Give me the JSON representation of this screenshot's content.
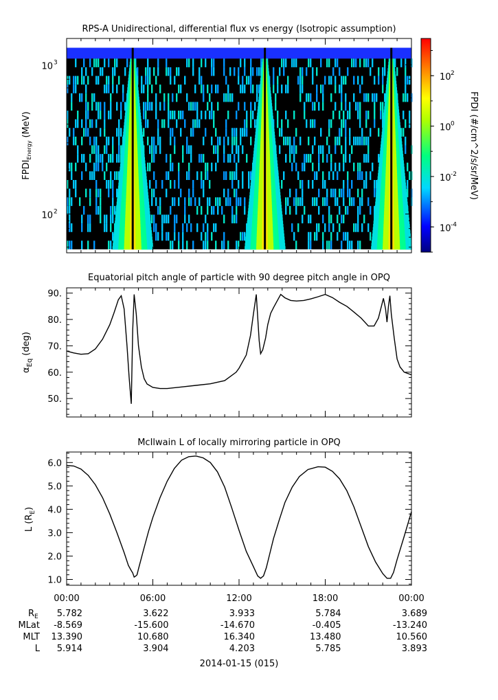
{
  "chart_data": [
    {
      "type": "heatmap",
      "title": "RPS-A Unidirectional, differential flux vs energy (Isotropic assumption)",
      "ylabel": "FPDI",
      "ylabel_sub": "Energy",
      "ylabel_unit": "(MeV)",
      "yscale": "log",
      "ylim": [
        55,
        1500
      ],
      "yticks": [
        {
          "value": 100,
          "label": "10",
          "exp": "2"
        },
        {
          "value": 1000,
          "label": "10",
          "exp": "3"
        }
      ],
      "data_range": [
        58,
        1300
      ],
      "fill_color": "#000000",
      "top_band_color": "#1a30ff",
      "bright_bands_hours": [
        4.6,
        13.8,
        22.6
      ],
      "colorbar": {
        "label": "FPDI (#/cm^2/s/sr/MeV)",
        "scale": "log",
        "range": [
          1e-05,
          3000
        ],
        "ticks": [
          {
            "value": 0.0001,
            "label": "10",
            "exp": "-4"
          },
          {
            "value": 0.01,
            "label": "10",
            "exp": "-2"
          },
          {
            "value": 1,
            "label": "10",
            "exp": "0"
          },
          {
            "value": 100,
            "label": "10",
            "exp": "2"
          }
        ]
      }
    },
    {
      "type": "line",
      "title": "Equatorial pitch angle of particle with 90 degree pitch angle in OPQ",
      "ylabel": "α",
      "ylabel_sub": "Eq",
      "ylabel_unit": "(deg)",
      "ylim": [
        43,
        92
      ],
      "yticks": [
        50,
        60,
        70,
        80,
        90
      ],
      "x_hours": [
        0,
        0.5,
        1,
        1.5,
        2,
        2.5,
        3,
        3.3,
        3.6,
        3.8,
        4,
        4.2,
        4.35,
        4.5,
        4.6,
        4.7,
        4.85,
        5,
        5.2,
        5.4,
        5.6,
        6,
        6.5,
        7,
        8,
        9,
        10,
        11,
        11.8,
        12,
        12.5,
        12.8,
        13,
        13.2,
        13.4,
        13.5,
        13.65,
        13.85,
        14,
        14.2,
        14.4,
        14.6,
        14.9,
        15.2,
        15.6,
        16,
        16.5,
        17,
        17.5,
        18,
        18.5,
        19,
        19.5,
        20,
        20.5,
        21,
        21.4,
        21.7,
        22.05,
        22.2,
        22.3,
        22.4,
        22.5,
        22.6,
        22.8,
        23,
        23.2,
        23.5,
        24
      ],
      "values": [
        68,
        67.3,
        66.8,
        67,
        68.8,
        72.5,
        78,
        82.5,
        87.5,
        89,
        84,
        70,
        58,
        48,
        76,
        89.5,
        82,
        70,
        62,
        57.5,
        55.5,
        54.2,
        53.8,
        53.8,
        54.4,
        55,
        55.6,
        56.8,
        60,
        61.5,
        66.5,
        74,
        82,
        89.5,
        72,
        67,
        68.5,
        73,
        78,
        82.3,
        84.5,
        86.5,
        89.5,
        88.2,
        87.2,
        87,
        87.2,
        87.8,
        88.6,
        89.5,
        88.3,
        86.5,
        85,
        82.8,
        80.5,
        77.5,
        77.5,
        80.5,
        88,
        84,
        79,
        85,
        89,
        82,
        73,
        65,
        62,
        60,
        59
      ]
    },
    {
      "type": "line",
      "title": "McIlwain L of locally mirroring particle in OPQ",
      "ylabel": "L (R",
      "ylabel_sub": "E",
      "ylabel_unit": ")",
      "ylim": [
        0.75,
        6.45
      ],
      "yticks": [
        1,
        2,
        3,
        4,
        5,
        6
      ],
      "x_hours": [
        0,
        0.5,
        1,
        1.5,
        2,
        2.5,
        3,
        3.5,
        4,
        4.3,
        4.5,
        4.6,
        4.7,
        4.8,
        4.9,
        5,
        5.3,
        5.7,
        6,
        6.5,
        7,
        7.5,
        8,
        8.5,
        9,
        9.5,
        10,
        10.5,
        11,
        11.5,
        12,
        12.5,
        13,
        13.3,
        13.5,
        13.7,
        13.9,
        14.1,
        14.4,
        14.8,
        15.2,
        15.7,
        16.2,
        16.8,
        17.5,
        18,
        18.5,
        19,
        19.5,
        20,
        20.5,
        21,
        21.5,
        22,
        22.3,
        22.55,
        22.75,
        23,
        23.5,
        24
      ],
      "values": [
        5.88,
        5.85,
        5.72,
        5.45,
        5.05,
        4.5,
        3.8,
        3.0,
        2.15,
        1.6,
        1.38,
        1.28,
        1.1,
        1.14,
        1.2,
        1.45,
        2.15,
        3.05,
        3.65,
        4.5,
        5.2,
        5.75,
        6.1,
        6.25,
        6.28,
        6.2,
        6.0,
        5.6,
        4.95,
        4.05,
        3.1,
        2.2,
        1.55,
        1.15,
        1.05,
        1.15,
        1.5,
        2.0,
        2.75,
        3.55,
        4.3,
        4.95,
        5.4,
        5.7,
        5.82,
        5.8,
        5.62,
        5.3,
        4.8,
        4.1,
        3.25,
        2.4,
        1.75,
        1.25,
        1.05,
        1.05,
        1.3,
        1.85,
        2.85,
        3.9
      ]
    }
  ],
  "x_axis": {
    "range_hours": [
      0,
      24
    ],
    "tick_labels": [
      "00:00",
      "06:00",
      "12:00",
      "18:00",
      "00:00"
    ],
    "date_label": "2014-01-15 (015)"
  },
  "ephemeris": {
    "row_labels": [
      "R",
      "MLat",
      "MLT",
      "L"
    ],
    "r_sub": "E",
    "columns": [
      [
        "5.782",
        "-8.569",
        "13.390",
        "5.914"
      ],
      [
        "3.622",
        "-15.600",
        "10.680",
        "3.904"
      ],
      [
        "3.933",
        "-14.670",
        "16.340",
        "4.203"
      ],
      [
        "5.784",
        "-0.405",
        "13.480",
        "5.785"
      ],
      [
        "3.689",
        "-13.240",
        "10.560",
        "3.893"
      ]
    ]
  }
}
